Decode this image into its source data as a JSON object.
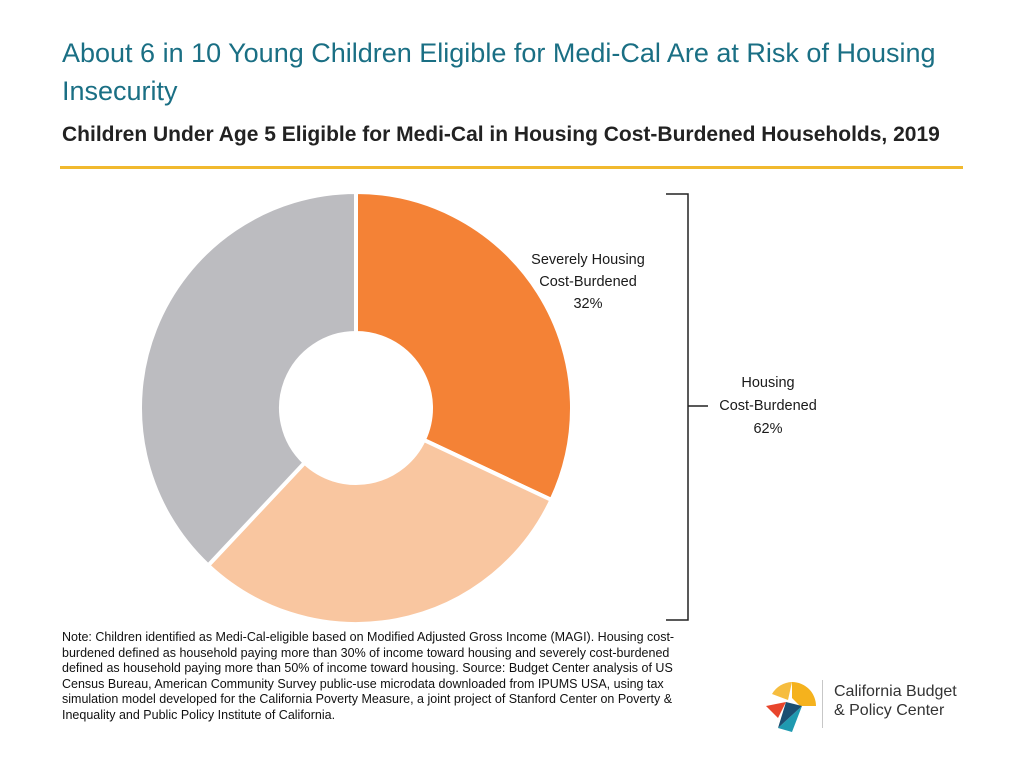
{
  "header": {
    "title": "About 6 in 10 Young Children Eligible for Medi-Cal Are at Risk of Housing Insecurity",
    "subtitle": "Children Under Age 5 Eligible for Medi-Cal in Housing Cost-Burdened Households, 2019"
  },
  "chart_data": {
    "type": "pie",
    "variant": "donut",
    "title": "Children Under Age 5 Eligible for Medi-Cal in Housing Cost-Burdened Households, 2019",
    "slices": [
      {
        "label": "Severely Housing Cost-Burdened",
        "value": 32,
        "color": "#f48236"
      },
      {
        "label": "",
        "value": 30,
        "color": "#f9c6a0"
      },
      {
        "label": "",
        "value": 38,
        "color": "#bcbcc0"
      }
    ],
    "bracket": {
      "label": "Housing Cost-Burdened",
      "value": 62
    }
  },
  "labels": {
    "severe_line1": "Severely Housing",
    "severe_line2": "Cost-Burdened",
    "severe_value": "32%",
    "bracket_line1": "Housing",
    "bracket_line2": "Cost-Burdened",
    "bracket_value": "62%"
  },
  "note": "Note: Children identified as Medi-Cal-eligible based on Modified Adjusted Gross Income (MAGI). Housing cost-burdened defined as household paying more than 30% of income toward housing and severely cost-burdened defined as household paying more than 50% of income toward housing. Source: Budget Center analysis of US Census Bureau, American Community Survey public-use microdata downloaded from IPUMS USA, using tax simulation model developed for the California Poverty Measure, a joint project of Stanford Center on Poverty & Inequality and Public Policy Institute of California.",
  "logo": {
    "name_line1": "California Budget",
    "name_line2": "& Policy Center",
    "colors": {
      "yellow": "#f5b21d",
      "teal": "#1f9ab0",
      "red": "#e8452c",
      "navy": "#1b4f72"
    }
  }
}
